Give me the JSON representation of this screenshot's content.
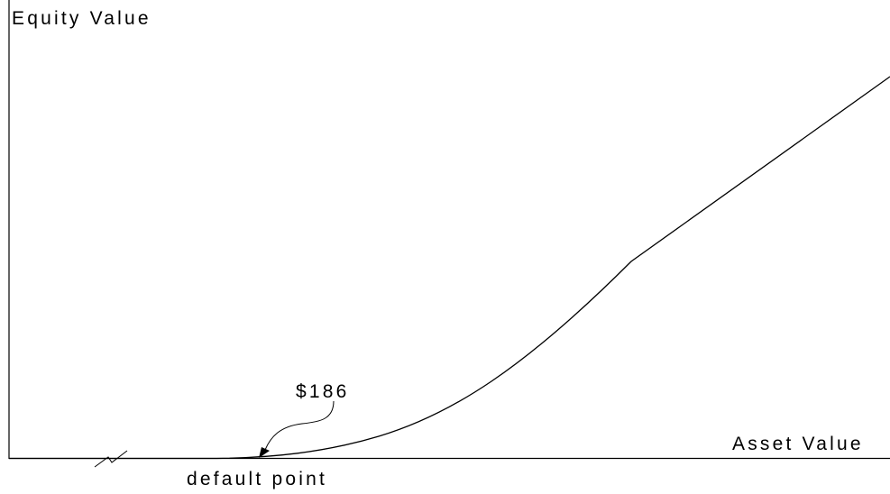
{
  "diagram": {
    "y_axis_label": "Equity Value",
    "x_axis_label": "Asset Value",
    "annotation_value": "$186",
    "default_point_label": "default point"
  },
  "colors": {
    "line": "#000000",
    "background": "#ffffff"
  },
  "icons": {
    "axis_break": "axis-break-icon",
    "pointer_arrow": "arrow-icon"
  }
}
